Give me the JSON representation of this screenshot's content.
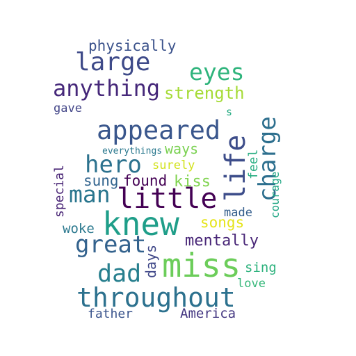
{
  "words": [
    {
      "text": "physically",
      "color": "#3b528b"
    },
    {
      "text": "large",
      "color": "#3e4a89"
    },
    {
      "text": "eyes",
      "color": "#2fb47c"
    },
    {
      "text": "anything",
      "color": "#46287a"
    },
    {
      "text": "strength",
      "color": "#a5db36"
    },
    {
      "text": "gave",
      "color": "#414487"
    },
    {
      "text": "s",
      "color": "#25ab82"
    },
    {
      "text": "appeared",
      "color": "#39568c"
    },
    {
      "text": "everythings",
      "color": "#2a788e"
    },
    {
      "text": "ways",
      "color": "#7ad151"
    },
    {
      "text": "hero",
      "color": "#2c728e"
    },
    {
      "text": "surely",
      "color": "#d2e21b"
    },
    {
      "text": "life",
      "color": "#3d4d8a"
    },
    {
      "text": "charge",
      "color": "#2d6f8e"
    },
    {
      "text": "feel",
      "color": "#27ad81"
    },
    {
      "text": "courage",
      "color": "#22a785"
    },
    {
      "text": "special",
      "color": "#482475"
    },
    {
      "text": "sung",
      "color": "#32648e"
    },
    {
      "text": "found",
      "color": "#440154"
    },
    {
      "text": "kiss",
      "color": "#7fd34e"
    },
    {
      "text": "man",
      "color": "#2a768e"
    },
    {
      "text": "little",
      "color": "#440154"
    },
    {
      "text": "made",
      "color": "#355f8d"
    },
    {
      "text": "knew",
      "color": "#1f9e89"
    },
    {
      "text": "songs",
      "color": "#e5e419"
    },
    {
      "text": "woke",
      "color": "#2a788e"
    },
    {
      "text": "great",
      "color": "#33628d"
    },
    {
      "text": "mentally",
      "color": "#482677"
    },
    {
      "text": "days",
      "color": "#3f4788"
    },
    {
      "text": "miss",
      "color": "#6ccd5a"
    },
    {
      "text": "dad",
      "color": "#277f8e"
    },
    {
      "text": "sing",
      "color": "#2db27d"
    },
    {
      "text": "love",
      "color": "#35b779"
    },
    {
      "text": "throughout",
      "color": "#2c718e"
    },
    {
      "text": "father",
      "color": "#3a548c"
    },
    {
      "text": "America",
      "color": "#453882"
    }
  ]
}
